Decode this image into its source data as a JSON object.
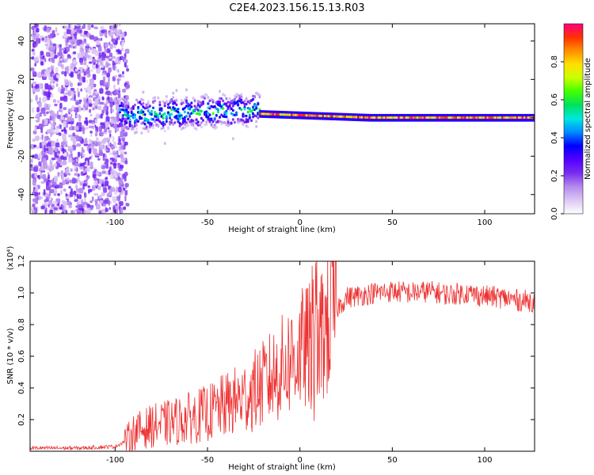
{
  "figure": {
    "title": "C2E4.2023.156.15.13.R03"
  },
  "chart_data": [
    {
      "type": "heatmap",
      "title": "C2E4.2023.156.15.13.R03",
      "xlabel": "Height of straight line (km)",
      "ylabel": "Frequency (Hz)",
      "xlim": [
        -146,
        127
      ],
      "ylim": [
        -50,
        49
      ],
      "x_ticks": [
        "-100",
        "-50",
        "0",
        "50",
        "100"
      ],
      "x_tick_values": [
        -100,
        -50,
        0,
        50,
        100
      ],
      "y_ticks": [
        "-40",
        "-20",
        "0",
        "20",
        "40"
      ],
      "y_tick_values": [
        -40,
        -20,
        0,
        20,
        40
      ],
      "grid": false,
      "colorbar": {
        "label": "Normalized spectral amplitude",
        "range": [
          0,
          1
        ],
        "ticks": [
          "0.0",
          "0.2",
          "0.4",
          "0.6",
          "0.8"
        ],
        "tick_values": [
          0.0,
          0.2,
          0.4,
          0.6,
          0.8
        ],
        "colormap": [
          "#ffffff",
          "#dcc8f4",
          "#b48aec",
          "#7a2cf0",
          "#5200ff",
          "#0000ff",
          "#0088ff",
          "#00e8e0",
          "#00e060",
          "#40ff00",
          "#c8ff00",
          "#ffe000",
          "#ff9000",
          "#ff3000",
          "#ff0080"
        ]
      },
      "regions": [
        {
          "name": "noise",
          "x_range": [
            -146,
            -98
          ],
          "freq_spread": 49,
          "amplitude": [
            0.05,
            0.25
          ]
        },
        {
          "name": "broad-line",
          "x_range": [
            -98,
            -22
          ],
          "center_freq": [
            2,
            5
          ],
          "width": 8,
          "amplitude": [
            0.3,
            0.65
          ]
        },
        {
          "name": "narrow-line",
          "x_range": [
            -22,
            127
          ],
          "center_freq": [
            2,
            0
          ],
          "width": 2,
          "amplitude": [
            0.7,
            1.0
          ]
        }
      ]
    },
    {
      "type": "line",
      "xlabel": "Height of straight line (km)",
      "ylabel": "SNR (10 * v/v)",
      "multiplier": "(x10⁴)",
      "xlim": [
        -146,
        127
      ],
      "ylim": [
        0,
        1.2
      ],
      "x_ticks": [
        "-100",
        "-50",
        "0",
        "50",
        "100"
      ],
      "x_tick_values": [
        -100,
        -50,
        0,
        50,
        100
      ],
      "y_ticks": [
        "0.2",
        "0.4",
        "0.6",
        "0.8",
        "1.0",
        "1.2"
      ],
      "y_tick_values": [
        0.2,
        0.4,
        0.6,
        0.8,
        1.0,
        1.2
      ],
      "color": "#ee3030",
      "grid": false,
      "trend": {
        "x": [
          -146,
          -120,
          -100,
          -95,
          -90,
          -80,
          -70,
          -60,
          -50,
          -40,
          -30,
          -20,
          -12,
          -5,
          0,
          5,
          10,
          15,
          20,
          25,
          30,
          40,
          50,
          60,
          70,
          80,
          90,
          100,
          110,
          120,
          127
        ],
        "y": [
          0.02,
          0.02,
          0.03,
          0.06,
          0.12,
          0.16,
          0.18,
          0.21,
          0.24,
          0.29,
          0.34,
          0.42,
          0.5,
          0.58,
          0.63,
          0.66,
          0.7,
          0.8,
          0.9,
          0.97,
          0.98,
          1.0,
          1.01,
          1.0,
          1.01,
          0.99,
          1.0,
          0.98,
          0.97,
          0.95,
          0.95
        ]
      }
    }
  ]
}
